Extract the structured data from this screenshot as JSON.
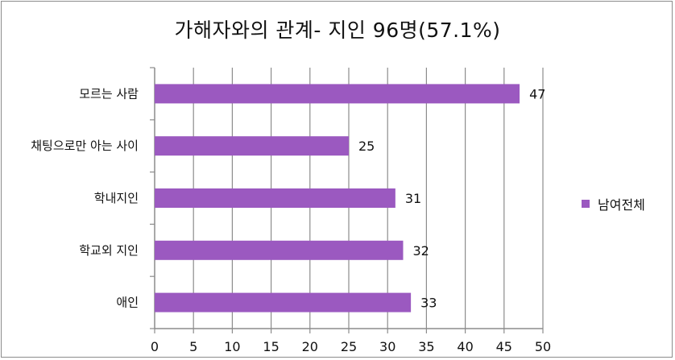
{
  "chart_data": {
    "type": "bar",
    "orientation": "horizontal",
    "title": "가해자와의 관계- 지인 96명(57.1%)",
    "categories": [
      "모르는 사람",
      "채팅으로만 아는 사이",
      "학내지인",
      "학교외 지인",
      "애인"
    ],
    "series": [
      {
        "name": "남여전체",
        "values": [
          47,
          25,
          31,
          32,
          33
        ],
        "color": "#9b59c0"
      }
    ],
    "xlim": [
      0,
      50
    ],
    "xticks": [
      0,
      5,
      10,
      15,
      20,
      25,
      30,
      35,
      40,
      45,
      50
    ],
    "grid": true,
    "legend_position": "right"
  }
}
